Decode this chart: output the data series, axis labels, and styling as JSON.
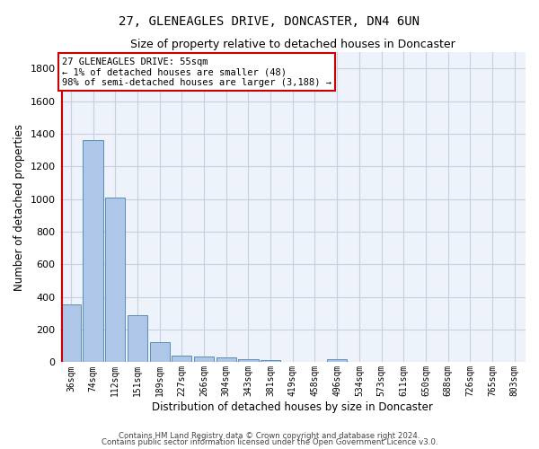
{
  "title": "27, GLENEAGLES DRIVE, DONCASTER, DN4 6UN",
  "subtitle": "Size of property relative to detached houses in Doncaster",
  "xlabel": "Distribution of detached houses by size in Doncaster",
  "ylabel": "Number of detached properties",
  "bar_color": "#aec6e8",
  "bar_edge_color": "#5b8db8",
  "background_color": "#eef2fa",
  "grid_color": "#c8cfe0",
  "categories": [
    "36sqm",
    "74sqm",
    "112sqm",
    "151sqm",
    "189sqm",
    "227sqm",
    "266sqm",
    "304sqm",
    "343sqm",
    "381sqm",
    "419sqm",
    "458sqm",
    "496sqm",
    "534sqm",
    "573sqm",
    "611sqm",
    "650sqm",
    "688sqm",
    "726sqm",
    "765sqm",
    "803sqm"
  ],
  "values": [
    355,
    1360,
    1010,
    290,
    125,
    42,
    35,
    28,
    20,
    15,
    0,
    0,
    18,
    0,
    0,
    0,
    0,
    0,
    0,
    0,
    0
  ],
  "ylim": [
    0,
    1900
  ],
  "yticks": [
    0,
    200,
    400,
    600,
    800,
    1000,
    1200,
    1400,
    1600,
    1800
  ],
  "annotation_text": "27 GLENEAGLES DRIVE: 55sqm\n← 1% of detached houses are smaller (48)\n98% of semi-detached houses are larger (3,188) →",
  "annotation_box_color": "#ffffff",
  "annotation_border_color": "#cc0000",
  "line_color": "#cc0000",
  "footnote1": "Contains HM Land Registry data © Crown copyright and database right 2024.",
  "footnote2": "Contains public sector information licensed under the Open Government Licence v3.0."
}
